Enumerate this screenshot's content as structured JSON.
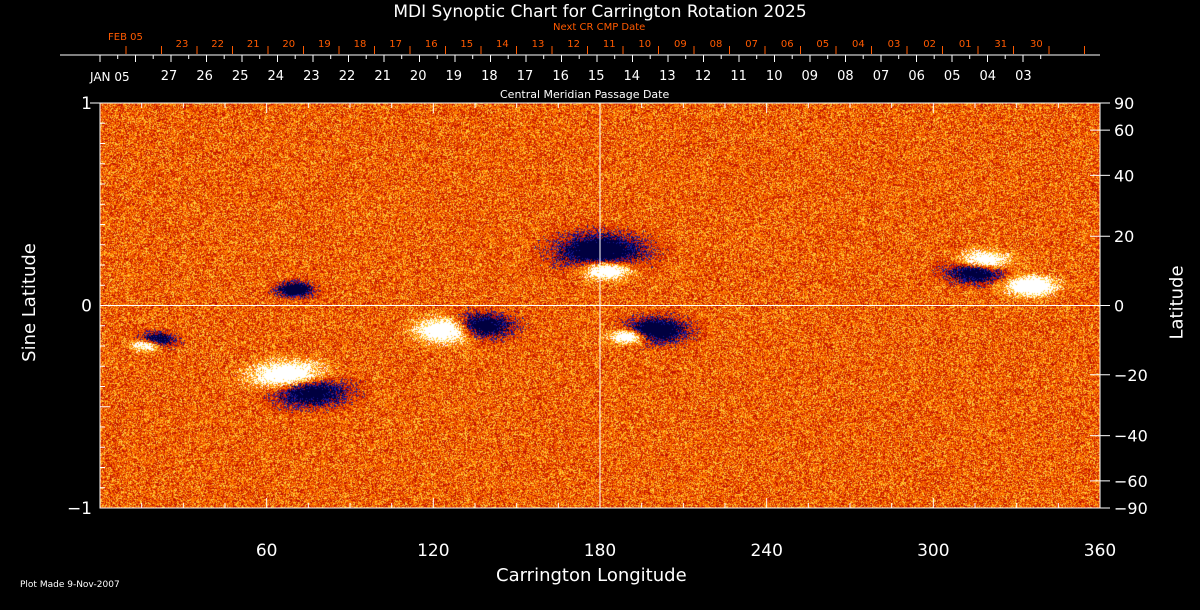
{
  "chart_data": {
    "type": "heatmap",
    "title": "MDI Synoptic Chart for Carrington Rotation 2025",
    "xlabel": "Carrington Longitude",
    "ylabel": "Sine Latitude",
    "ylabel_right": "Latitude",
    "xlim": [
      0,
      360
    ],
    "ylim": [
      -1,
      1
    ],
    "x_ticks": [
      60,
      120,
      180,
      240,
      300,
      360
    ],
    "y_ticks_left": [
      -1,
      0,
      1
    ],
    "y_ticks_right": [
      90,
      60,
      40,
      20,
      0,
      -20,
      -40,
      -60,
      -90
    ],
    "grid_lines": {
      "x": 180,
      "y": 0
    },
    "colormap": [
      "#000040",
      "#1a1a9a",
      "#c01000",
      "#e84a00",
      "#ff8000",
      "#ffd040",
      "#ffffff"
    ],
    "top_axis_cmp": {
      "label": "Central Meridian Passage Date",
      "first": "JAN 05",
      "dates": [
        "27",
        "26",
        "25",
        "24",
        "23",
        "22",
        "21",
        "20",
        "19",
        "18",
        "17",
        "16",
        "15",
        "14",
        "13",
        "12",
        "11",
        "10",
        "09",
        "08",
        "07",
        "06",
        "05",
        "04",
        "03"
      ]
    },
    "top_axis_next": {
      "label": "Next CR CMP Date",
      "first": "FEB 05",
      "dates": [
        "23",
        "22",
        "21",
        "20",
        "19",
        "18",
        "17",
        "16",
        "15",
        "14",
        "13",
        "12",
        "11",
        "10",
        "09",
        "08",
        "07",
        "06",
        "05",
        "04",
        "03",
        "02",
        "01",
        "31",
        "30"
      ]
    }
  },
  "footer": "Plot Made  9-Nov-2007"
}
